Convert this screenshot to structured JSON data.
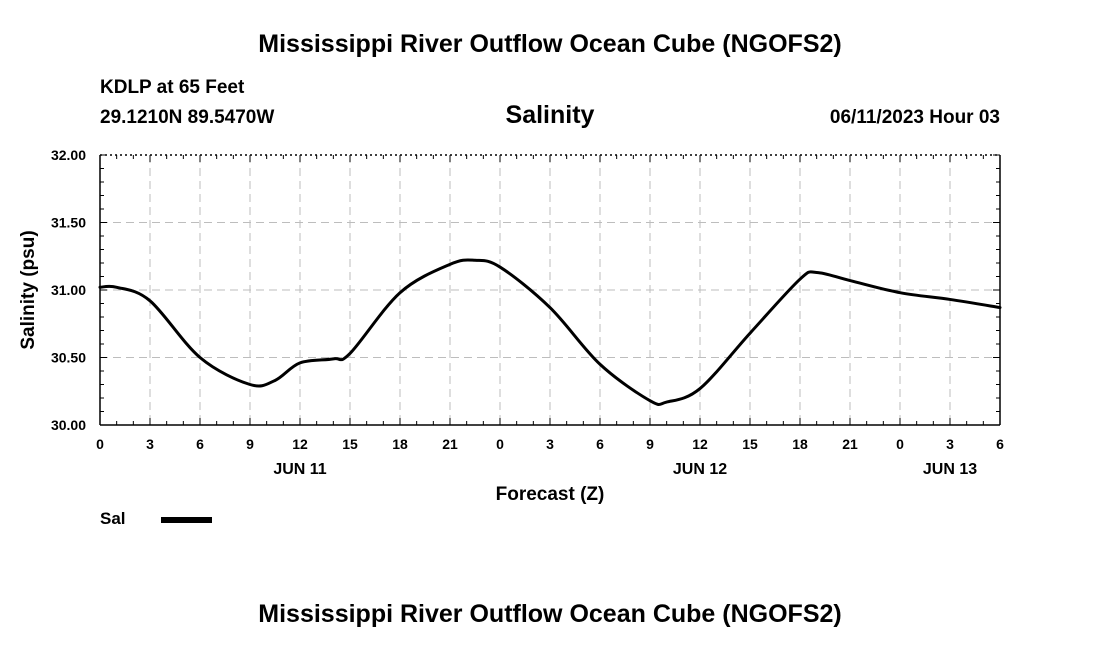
{
  "header": {
    "main_title": "Mississippi River Outflow Ocean Cube (NGOFS2)",
    "station": "KDLP at 65 Feet",
    "coordinates": "29.1210N  89.5470W",
    "datetime": "06/11/2023 Hour 03",
    "footer_title": "Mississippi River Outflow Ocean Cube (NGOFS2)"
  },
  "legend": {
    "label": "Sal",
    "color": "#000000"
  },
  "chart_data": {
    "type": "line",
    "title": "Salinity",
    "xlabel": "Forecast (Z)",
    "ylabel": "Salinity (psu)",
    "ylim": [
      30.0,
      32.0
    ],
    "xlim": [
      0,
      54
    ],
    "grid": true,
    "y_ticks": [
      "30.00",
      "30.50",
      "31.00",
      "31.50",
      "32.00"
    ],
    "y_tick_values": [
      30.0,
      30.5,
      31.0,
      31.5,
      32.0
    ],
    "x_ticks": [
      "0",
      "3",
      "6",
      "9",
      "12",
      "15",
      "18",
      "21",
      "0",
      "3",
      "6",
      "9",
      "12",
      "15",
      "18",
      "21",
      "0",
      "3",
      "6"
    ],
    "x_tick_values": [
      0,
      3,
      6,
      9,
      12,
      15,
      18,
      21,
      24,
      27,
      30,
      33,
      36,
      39,
      42,
      45,
      48,
      51,
      54
    ],
    "date_labels": [
      {
        "label": "JUN 11",
        "hour": 12
      },
      {
        "label": "JUN 12",
        "hour": 36
      },
      {
        "label": "JUN 13",
        "hour": 51
      }
    ],
    "series": [
      {
        "name": "Sal",
        "color": "#000000",
        "x": [
          0,
          1,
          3,
          6,
          9,
          10.5,
          12,
          14,
          15,
          18,
          21,
          22.5,
          24,
          27,
          30,
          33,
          34,
          36,
          39,
          42,
          43,
          45,
          48,
          51,
          54
        ],
        "values": [
          31.02,
          31.02,
          30.92,
          30.5,
          30.3,
          30.33,
          30.46,
          30.49,
          30.53,
          30.98,
          31.19,
          31.22,
          31.17,
          30.87,
          30.45,
          30.18,
          30.17,
          30.27,
          30.68,
          31.08,
          31.13,
          31.07,
          30.98,
          30.93,
          30.87
        ]
      }
    ]
  }
}
